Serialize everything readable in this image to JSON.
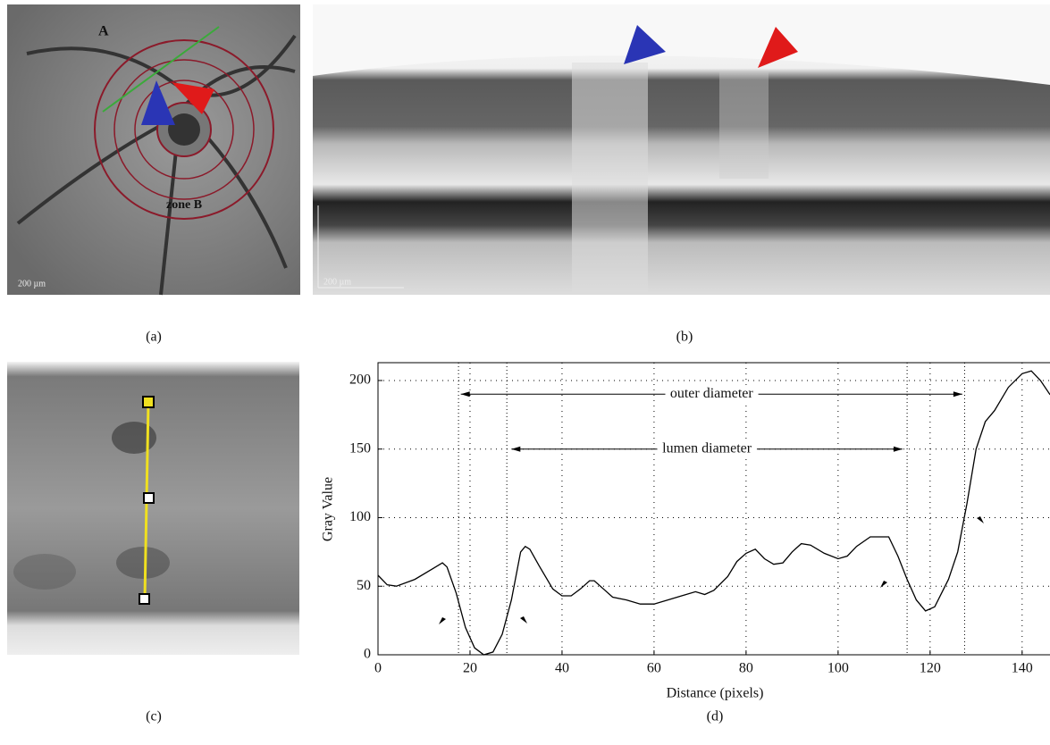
{
  "panels": {
    "a": {
      "label": "(a)",
      "texts": [
        "A",
        "zone B",
        "200 µm"
      ]
    },
    "b": {
      "label": "(b)",
      "texts": [
        "200 µm"
      ]
    },
    "c": {
      "label": "(c)"
    },
    "d": {
      "label": "(d)"
    }
  },
  "chart_data": {
    "type": "line",
    "xlabel": "Distance (pixels)",
    "ylabel": "Gray Value",
    "x": [
      0,
      2,
      4,
      8,
      12,
      14,
      15,
      17,
      19,
      21,
      23,
      25,
      27,
      29,
      31,
      32,
      33,
      35,
      38,
      40,
      42,
      44,
      46,
      47,
      49,
      51,
      54,
      57,
      60,
      63,
      66,
      69,
      71,
      73,
      76,
      78,
      80,
      82,
      84,
      86,
      88,
      90,
      92,
      94,
      97,
      100,
      102,
      104,
      107,
      111,
      113,
      115,
      117,
      119,
      121,
      124,
      126,
      128,
      130,
      132,
      134,
      137,
      140,
      142,
      144,
      146,
      148
    ],
    "values": [
      58,
      51,
      50,
      55,
      63,
      67,
      64,
      45,
      20,
      5,
      0,
      2,
      15,
      40,
      75,
      79,
      77,
      65,
      48,
      43,
      43,
      48,
      54,
      54,
      48,
      42,
      40,
      37,
      37,
      40,
      43,
      46,
      44,
      47,
      57,
      68,
      74,
      77,
      70,
      66,
      67,
      75,
      81,
      80,
      74,
      70,
      72,
      79,
      86,
      86,
      72,
      55,
      40,
      32,
      35,
      55,
      75,
      110,
      150,
      170,
      178,
      195,
      205,
      207,
      200,
      190,
      185
    ],
    "color": "#000000",
    "xlim": [
      0,
      148
    ],
    "ylim": [
      0,
      213
    ],
    "xticks": [
      0,
      20,
      40,
      60,
      80,
      100,
      120,
      140
    ],
    "yticks": [
      0,
      50,
      100,
      150,
      200
    ],
    "grid": true,
    "guides": [
      17.5,
      28,
      115,
      127.5
    ],
    "annotations": [
      {
        "text": "outer diameter",
        "x0": 18,
        "x1": 127,
        "y": 190
      },
      {
        "text": "lumen diameter",
        "x0": 29,
        "x1": 114,
        "y": 150
      }
    ]
  }
}
